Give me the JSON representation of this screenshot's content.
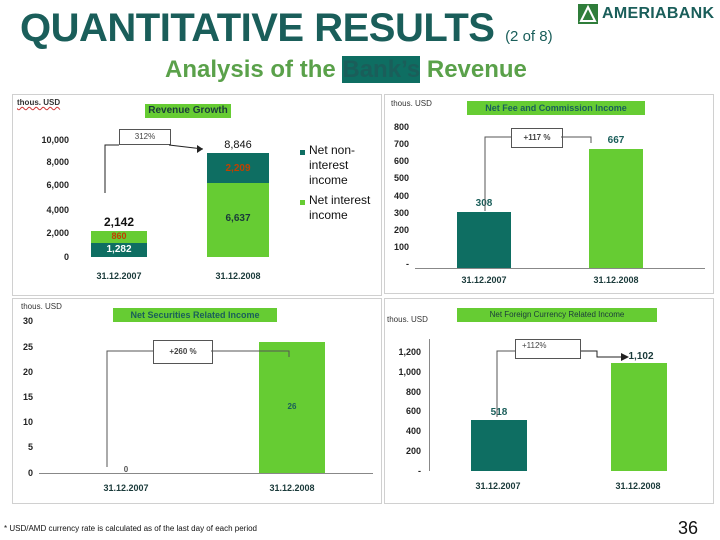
{
  "header": {
    "title_main": "QUANTITATIVE RESULTS",
    "title_part": "(2 of 8)",
    "subtitle_a": "Analysis of the ",
    "subtitle_b": "Bank’s",
    "subtitle_c": " Revenue",
    "logo_text": "AMERIABANK"
  },
  "colors": {
    "teal": "#0e6e62",
    "green": "#66cc33",
    "title": "#1a5e5a",
    "banner_bg": "#66cc33"
  },
  "chart_data": [
    {
      "type": "bar",
      "id": "revenue-growth",
      "title": "Revenue Growth",
      "unit": "thous. USD",
      "categories": [
        "31.12.2007",
        "31.12.2008"
      ],
      "stacked": true,
      "series": [
        {
          "name": "Net interest income",
          "values": [
            1282,
            6637
          ],
          "labels": [
            "1,282",
            "6,637"
          ]
        },
        {
          "name": "Net non-interest income",
          "values": [
            860,
            2209
          ],
          "labels": [
            "860",
            "2,209"
          ]
        }
      ],
      "totals": [
        2142,
        8846
      ],
      "total_labels": [
        "2,142",
        "8,846"
      ],
      "growth_label": "312%",
      "yticks": [
        "10,000",
        "8,000",
        "6,000",
        "4,000",
        "2,000",
        "0"
      ],
      "ylim": [
        0,
        10000
      ],
      "legend": "right"
    },
    {
      "type": "bar",
      "id": "fee-commission",
      "title": "Net Fee and Commission Income",
      "unit": "thous. USD",
      "categories": [
        "31.12.2007",
        "31.12.2008"
      ],
      "values": [
        308,
        667
      ],
      "labels": [
        "308",
        "667"
      ],
      "growth_label": "+117 %",
      "yticks": [
        "800",
        "700",
        "600",
        "500",
        "400",
        "300",
        "200",
        "100",
        "-"
      ],
      "ylim": [
        0,
        800
      ]
    },
    {
      "type": "bar",
      "id": "securities",
      "title": "Net Securities Related Income",
      "unit": "thous. USD",
      "categories": [
        "31.12.2007",
        "31.12.2008"
      ],
      "values": [
        0,
        26
      ],
      "labels": [
        "0",
        "26"
      ],
      "growth_label": "+260 %",
      "yticks": [
        "30",
        "25",
        "20",
        "15",
        "10",
        "5",
        "0"
      ],
      "ylim": [
        0,
        30
      ]
    },
    {
      "type": "bar",
      "id": "foreign-currency",
      "title": "Net Foreign Currency Related Income",
      "unit": "thous. USD",
      "categories": [
        "31.12.2007",
        "31.12.2008"
      ],
      "values": [
        518,
        1102
      ],
      "labels": [
        "518",
        "1,102"
      ],
      "growth_label": "+112%",
      "yticks": [
        "1,200",
        "1,000",
        "800",
        "600",
        "400",
        "200",
        "-"
      ],
      "ylim": [
        0,
        1200
      ]
    }
  ],
  "footer": {
    "footnote": "* USD/AMD currency rate is calculated as of the last day of each period",
    "page_number": "36"
  }
}
